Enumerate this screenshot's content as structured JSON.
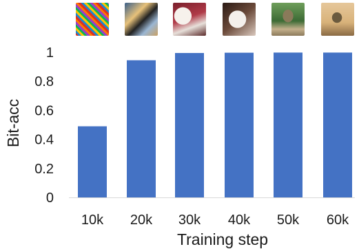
{
  "chart_data": {
    "type": "bar",
    "categories": [
      "10k",
      "20k",
      "30k",
      "40k",
      "50k",
      "60k"
    ],
    "values": [
      0.49,
      0.945,
      0.995,
      0.997,
      0.998,
      0.998
    ],
    "xlabel": "Training step",
    "ylabel": "Bit-acc",
    "ylim": [
      0,
      1
    ],
    "yticks": [
      "0",
      "0.2",
      "0.4",
      "0.6",
      "0.8",
      "1"
    ],
    "bar_color": "#4472C4",
    "grid": false,
    "legend": "none"
  },
  "thumbnails": [
    {
      "category": "10k",
      "description": "noisy-colored-pattern"
    },
    {
      "category": "20k",
      "description": "blurry-bird-colors"
    },
    {
      "category": "30k",
      "description": "bird-image-red-white"
    },
    {
      "category": "40k",
      "description": "bird-image-white"
    },
    {
      "category": "50k",
      "description": "bird-on-branch-green"
    },
    {
      "category": "60k",
      "description": "bird-on-branch-beige"
    }
  ]
}
